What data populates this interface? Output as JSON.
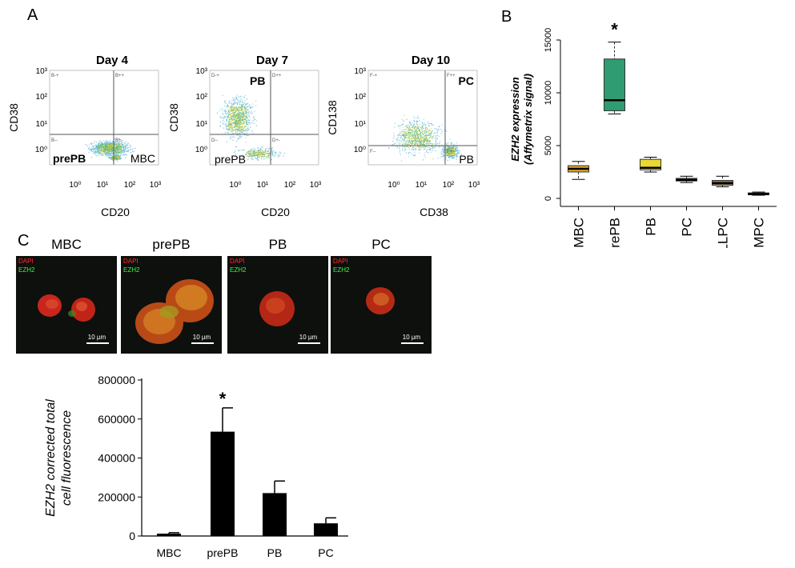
{
  "panels": {
    "a": "A",
    "b": "B",
    "c": "C"
  },
  "flow_plots": [
    {
      "title": "Day 4",
      "ylabel": "CD38",
      "xlabel": "CD20",
      "y_ticks": [
        "10³",
        "10²",
        "10¹",
        "10⁰"
      ],
      "x_ticks": [
        "10⁰",
        "10¹",
        "10²",
        "10³"
      ],
      "gates": [
        "B-+",
        "B++",
        "B--",
        "B+-"
      ],
      "pop_left": "prePB",
      "pop_right": "MBC"
    },
    {
      "title": "Day 7",
      "ylabel": "CD38",
      "xlabel": "CD20",
      "y_ticks": [
        "10³",
        "10²",
        "10¹",
        "10⁰"
      ],
      "x_ticks": [
        "10⁰",
        "10¹",
        "10²",
        "10³"
      ],
      "gates": [
        "D-+",
        "D++",
        "D--",
        "D+-"
      ],
      "pop_top": "PB",
      "pop_bottom": "prePB"
    },
    {
      "title": "Day 10",
      "ylabel": "CD138",
      "xlabel": "CD38",
      "y_ticks": [
        "10³",
        "10²",
        "10¹",
        "10⁰"
      ],
      "x_ticks": [
        "10⁰",
        "10¹",
        "10²",
        "10³"
      ],
      "gates": [
        "F-+",
        "F++",
        "F--",
        "F+-"
      ],
      "pop_top": "PC",
      "pop_bottom": "PB"
    }
  ],
  "microscopy": {
    "dapi_label": "DAPI",
    "ezh2_label": "EZH2",
    "scale_label": "10 µm",
    "panels": [
      "MBC",
      "prePB",
      "PB",
      "PC"
    ]
  },
  "chart_data": [
    {
      "type": "box",
      "ylabel": "EZH2 expression\n(Affymetrix signal)",
      "categories": [
        "MBC",
        "PrePB",
        "PB",
        "PC",
        "LLPC",
        "BMPC"
      ],
      "ylim": [
        0,
        15000
      ],
      "y_ticks": [
        0,
        5000,
        10000,
        15000
      ],
      "boxes": [
        {
          "min": 1800,
          "q1": 2500,
          "median": 2800,
          "q3": 3100,
          "max": 3500,
          "color": "#e3a72b"
        },
        {
          "min": 8000,
          "q1": 8300,
          "median": 9300,
          "q3": 13200,
          "max": 14800,
          "color": "#2f9c72"
        },
        {
          "min": 2500,
          "q1": 2700,
          "median": 2900,
          "q3": 3700,
          "max": 3900,
          "color": "#e9d733"
        },
        {
          "min": 1500,
          "q1": 1650,
          "median": 1750,
          "q3": 1900,
          "max": 2100,
          "color": "#8a8a8a"
        },
        {
          "min": 1100,
          "q1": 1250,
          "median": 1450,
          "q3": 1700,
          "max": 2100,
          "color": "#8a7a55"
        },
        {
          "min": 300,
          "q1": 350,
          "median": 420,
          "q3": 520,
          "max": 600,
          "color": "#4a4a4a"
        }
      ],
      "significance": [
        {
          "category": "PrePB",
          "marker": "*"
        }
      ]
    },
    {
      "type": "bar",
      "ylabel": "EZH2 corrected total\ncell fluorescence",
      "categories": [
        "MBC",
        "prePB",
        "PB",
        "PC"
      ],
      "values": [
        12000,
        535000,
        220000,
        65000
      ],
      "errors": [
        5000,
        122000,
        62000,
        28000
      ],
      "ylim": [
        0,
        800000
      ],
      "y_ticks": [
        0,
        200000,
        400000,
        600000,
        800000
      ],
      "significance": [
        {
          "category": "prePB",
          "marker": "*"
        }
      ]
    }
  ]
}
